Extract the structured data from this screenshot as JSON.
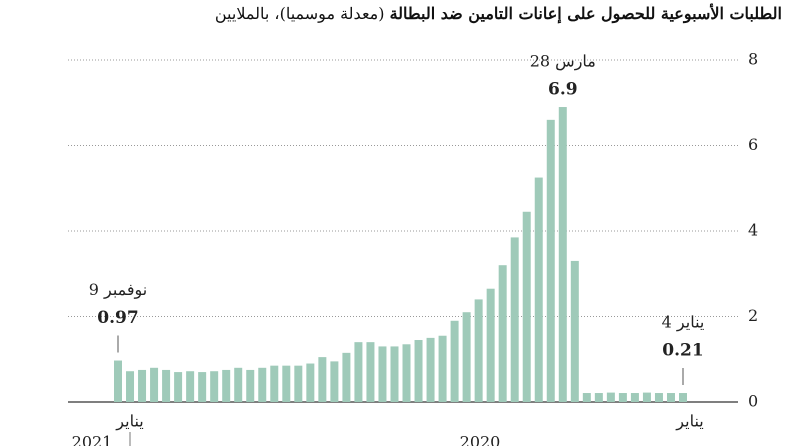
{
  "chart_data": {
    "type": "bar",
    "title": "الطلبات الأسبوعية للحصول على إعانات التامين ضد البطالة",
    "subtitle": "(معدلة موسميا)، بالملايين",
    "categories": [
      "4 يناير",
      null,
      null,
      null,
      null,
      null,
      null,
      null,
      null,
      null,
      "28 مارس",
      null,
      null,
      null,
      null,
      null,
      null,
      null,
      null,
      null,
      null,
      null,
      null,
      null,
      null,
      null,
      null,
      null,
      null,
      null,
      null,
      null,
      null,
      null,
      null,
      null,
      null,
      null,
      null,
      null,
      null,
      null,
      null,
      null,
      null,
      null,
      null,
      "9 نوفمبر"
    ],
    "values": [
      0.21,
      0.21,
      0.21,
      0.22,
      0.21,
      0.21,
      0.22,
      0.21,
      0.21,
      3.3,
      6.9,
      6.6,
      5.25,
      4.45,
      3.85,
      3.2,
      2.65,
      2.4,
      2.1,
      1.9,
      1.55,
      1.5,
      1.45,
      1.35,
      1.3,
      1.3,
      1.4,
      1.4,
      1.15,
      0.95,
      1.05,
      0.9,
      0.85,
      0.85,
      0.85,
      0.8,
      0.75,
      0.8,
      0.75,
      0.72,
      0.7,
      0.72,
      0.7,
      0.75,
      0.8,
      0.75,
      0.72,
      0.97
    ],
    "x_months": [
      "يناير",
      "يناير"
    ],
    "x_years": [
      "2020",
      "2021"
    ],
    "color": "#9fcab9",
    "ylim": [
      0,
      8
    ],
    "yticks": [
      0,
      2,
      4,
      6,
      8
    ],
    "grid": true
  }
}
